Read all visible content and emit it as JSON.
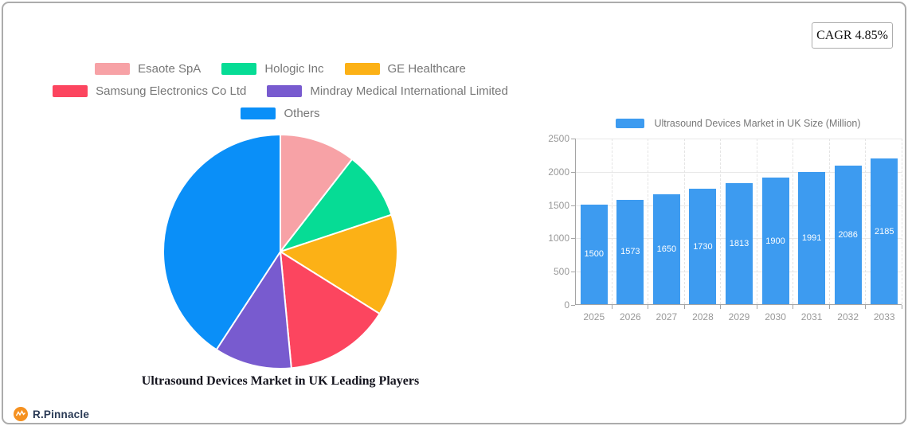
{
  "card": {
    "cagr_label": "CAGR 4.85%"
  },
  "brand": {
    "name": "R.Pinnacle",
    "icon_color": "#F59120",
    "text_color": "#2A3A55"
  },
  "chart_data": [
    {
      "type": "pie",
      "title": "Ultrasound Devices Market in UK Leading Players",
      "legend_position": "top",
      "clockwise": true,
      "start_angle": "12-oclock",
      "categories": [
        "Esaote SpA",
        "Hologic Inc",
        "GE Healthcare",
        "Samsung Electronics Co  Ltd",
        "Mindray Medical International Limited",
        "Others"
      ],
      "values_percent_estimated": [
        10.5,
        9.4,
        14.0,
        14.6,
        10.7,
        40.8
      ],
      "colors": [
        "#F7A2A6",
        "#06DC95",
        "#FCB116",
        "#FC455F",
        "#785BCF",
        "#0A8FF8"
      ],
      "slice_border_color": "#FFFFFF"
    },
    {
      "type": "bar",
      "legend": "Ultrasound Devices Market in UK Size (Million)",
      "legend_position": "top",
      "categories": [
        "2025",
        "2026",
        "2027",
        "2028",
        "2029",
        "2030",
        "2031",
        "2032",
        "2033"
      ],
      "values": [
        1500,
        1573,
        1650,
        1730,
        1813,
        1900,
        1991,
        2086,
        2185
      ],
      "ylim": [
        0,
        2500
      ],
      "yticks": [
        0,
        500,
        1000,
        1500,
        2000,
        2500
      ],
      "grid": true,
      "bar_color": "#3D9BF0",
      "value_label_color": "#FFFFFF",
      "axis_text_color": "#999999"
    }
  ]
}
